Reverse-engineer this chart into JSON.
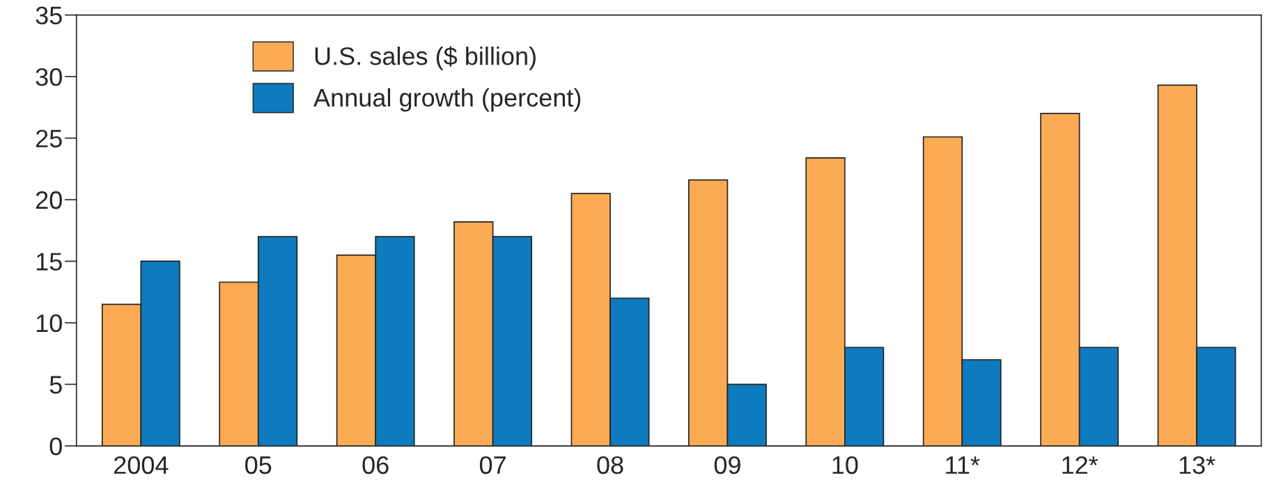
{
  "chart_data": {
    "type": "bar",
    "categories": [
      "2004",
      "05",
      "06",
      "07",
      "08",
      "09",
      "10",
      "11*",
      "12*",
      "13*"
    ],
    "series": [
      {
        "name": "U.S. sales ($ billion)",
        "color": "#fbab53",
        "values": [
          11.5,
          13.3,
          15.5,
          18.2,
          20.5,
          21.6,
          23.4,
          25.1,
          27.0,
          29.3
        ]
      },
      {
        "name": "Annual growth (percent)",
        "color": "#0d7bbd",
        "values": [
          15,
          17,
          17,
          17,
          12,
          5,
          8,
          7,
          8,
          8
        ]
      }
    ],
    "ylim": [
      0,
      35
    ],
    "yticks": [
      0,
      5,
      10,
      15,
      20,
      25,
      30,
      35
    ],
    "grid": false,
    "legend": "top left"
  }
}
